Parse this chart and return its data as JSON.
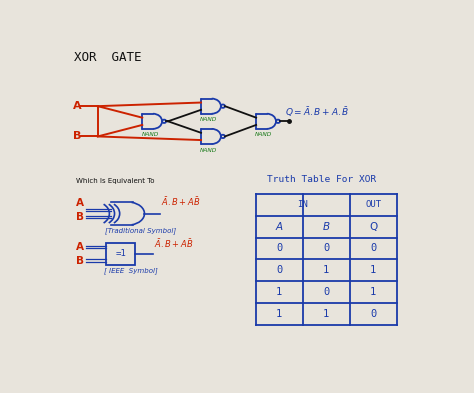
{
  "title": "XOR  GATE",
  "bg_color": "#e8e4dc",
  "red_color": "#cc2200",
  "blue_color": "#1a3aaa",
  "green_color": "#1a7a1a",
  "black_color": "#111111",
  "truth_table_title": "Truth Table For XOR",
  "col_headers": [
    "A",
    "B",
    "Q"
  ],
  "rows": [
    [
      "0",
      "0",
      "0"
    ],
    [
      "0",
      "1",
      "1"
    ],
    [
      "1",
      "0",
      "1"
    ],
    [
      "1",
      "1",
      "0"
    ]
  ],
  "equiv_text": "Which Is Equivalent To",
  "traditional_label": "[Traditional Symbol]",
  "ieee_label": "[ IEEE  Symbol]"
}
